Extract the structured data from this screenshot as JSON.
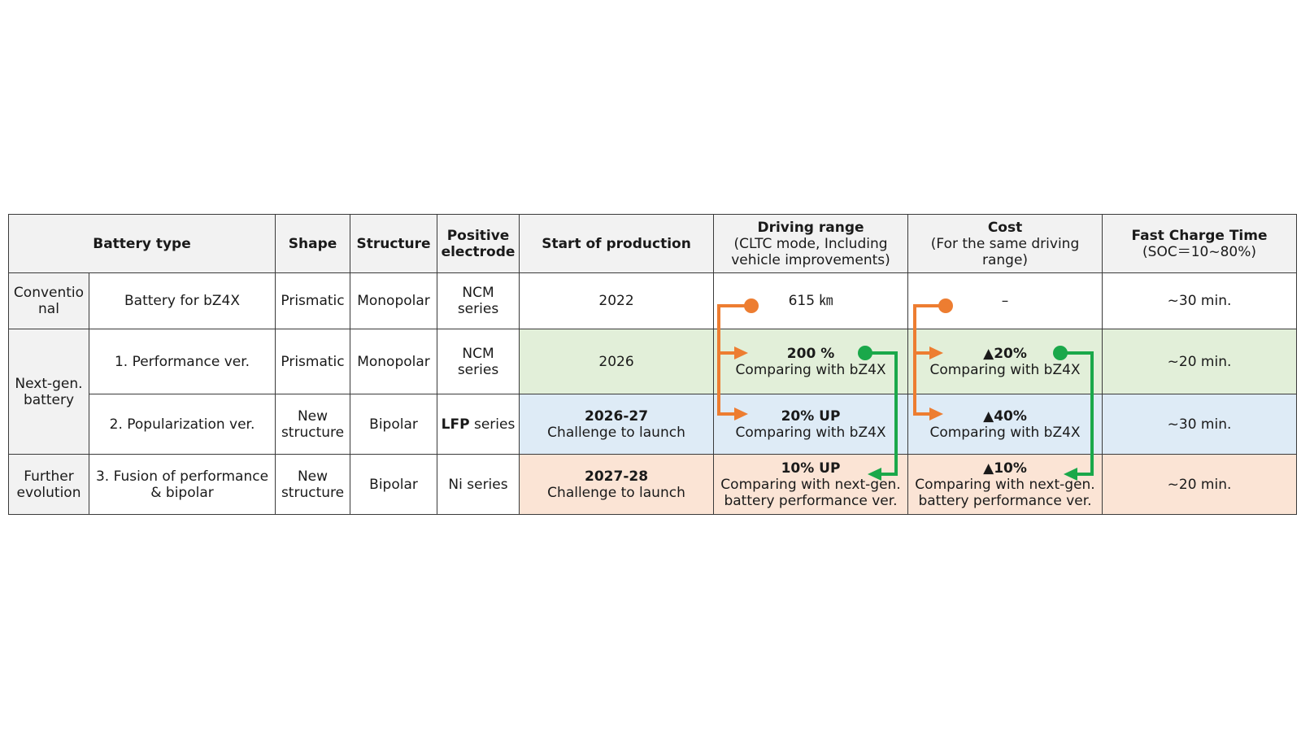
{
  "headers": {
    "battery_type": "Battery type",
    "shape": "Shape",
    "structure": "Structure",
    "positive_electrode": "Positive electrode",
    "start_of_production": "Start of production",
    "driving_range": "Driving range",
    "driving_range_sub": "(CLTC mode, Including vehicle improvements)",
    "cost": "Cost",
    "cost_sub": "(For the same driving range)",
    "fast_charge": "Fast Charge Time",
    "fast_charge_sub": "(SOC＝10~80%)"
  },
  "groups": {
    "conventional": "Conventio nal",
    "next_gen": "Next-gen. battery",
    "further": "Further evolution"
  },
  "rows": [
    {
      "name": "Battery for bZ4X",
      "shape": "Prismatic",
      "structure": "Monopolar",
      "electrode_bold": "",
      "electrode": "NCM series",
      "start": "2022",
      "start_sub": "",
      "range_main": "615 ㎞",
      "range_sub": "",
      "cost_main": "–",
      "cost_sub": "",
      "charge": "~30 min."
    },
    {
      "name": "1. Performance ver.",
      "shape": "Prismatic",
      "structure": "Monopolar",
      "electrode_bold": "",
      "electrode": "NCM series",
      "start": "2026",
      "start_sub": "",
      "range_main": "200 %",
      "range_sub": "Comparing with bZ4X",
      "cost_main": "▲20%",
      "cost_sub": "Comparing with bZ4X",
      "charge": "~20 min."
    },
    {
      "name": "2. Popularization ver.",
      "shape": "New structure",
      "structure": "Bipolar",
      "electrode_bold": "LFP",
      "electrode": "series",
      "start": "2026-27",
      "start_sub": "Challenge to launch",
      "range_main": "20%  UP",
      "range_sub": "Comparing with bZ4X",
      "cost_main": "▲40%",
      "cost_sub": "Comparing with bZ4X",
      "charge": "~30 min."
    },
    {
      "name": "3. Fusion of performance & bipolar",
      "shape": "New structure",
      "structure": "Bipolar",
      "electrode_bold": "",
      "electrode": "Ni series",
      "start": "2027-28",
      "start_sub": "Challenge to launch",
      "range_main": "10%  UP",
      "range_sub": "Comparing with next-gen. battery performance ver.",
      "cost_main": "▲10%",
      "cost_sub": "Comparing with next-gen. battery performance ver.",
      "charge": "~20 min."
    }
  ],
  "colors": {
    "orange_arrow": "#ed7d31",
    "green_arrow": "#1aa84a",
    "green_row": "#e2efd9",
    "blue_row": "#deebf6",
    "peach_row": "#fbe4d5"
  }
}
